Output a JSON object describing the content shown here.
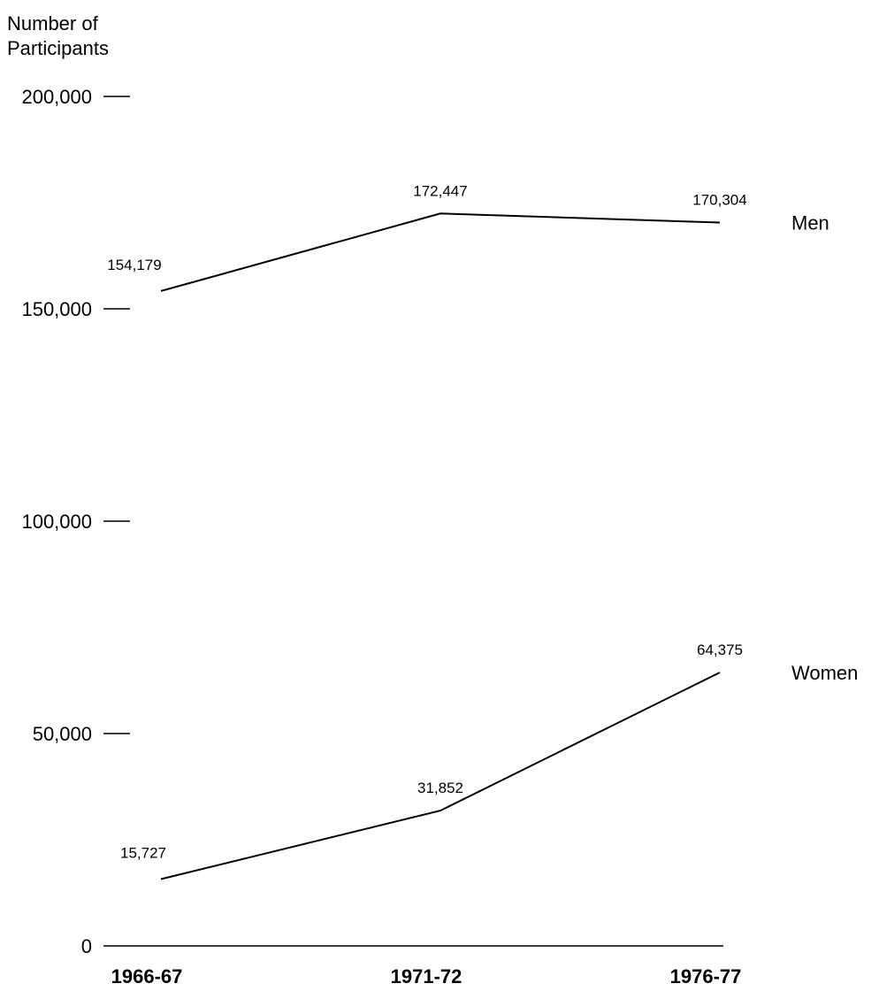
{
  "chart_data": {
    "type": "line",
    "ylabel_lines": [
      "Number of",
      "Participants"
    ],
    "categories": [
      "1966-67",
      "1971-72",
      "1976-77"
    ],
    "ylim": [
      0,
      200000
    ],
    "yticks": [
      {
        "value": 0,
        "label": "0"
      },
      {
        "value": 50000,
        "label": "50,000"
      },
      {
        "value": 100000,
        "label": "100,000"
      },
      {
        "value": 150000,
        "label": "150,000"
      },
      {
        "value": 200000,
        "label": "200,000"
      }
    ],
    "grid": false,
    "legend": "series labeled at line ends (right)",
    "series": [
      {
        "name": "Men",
        "values": [
          154179,
          172447,
          170304
        ],
        "labels": [
          "154,179",
          "172,447",
          "170,304"
        ]
      },
      {
        "name": "Women",
        "values": [
          15727,
          31852,
          64375
        ],
        "labels": [
          "15,727",
          "31,852",
          "64,375"
        ]
      }
    ]
  }
}
